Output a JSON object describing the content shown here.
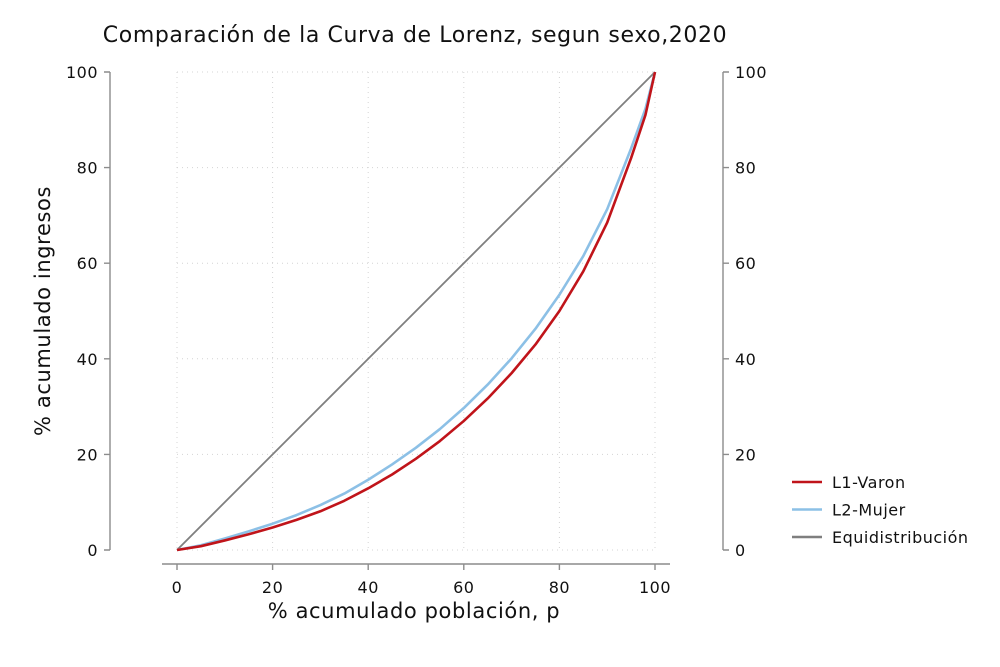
{
  "chart_data": {
    "type": "line",
    "title": "Comparación de la Curva de Lorenz, segun sexo,2020",
    "xlabel": "% acumulado población, p",
    "ylabel": "% acumulado ingresos",
    "xlim": [
      0,
      100
    ],
    "ylim": [
      0,
      100
    ],
    "x_ticks": [
      "0",
      "20",
      "40",
      "60",
      "80",
      "100"
    ],
    "y_ticks": [
      "0",
      "20",
      "40",
      "60",
      "80",
      "100"
    ],
    "y_ticks_right": [
      "0",
      "20",
      "40",
      "60",
      "80",
      "100"
    ],
    "grid": true,
    "legend_position": "right",
    "series": [
      {
        "name": "L1-Varon",
        "color": "#c0141a",
        "x": [
          0,
          5,
          10,
          15,
          20,
          25,
          30,
          35,
          40,
          45,
          50,
          55,
          60,
          65,
          70,
          75,
          80,
          85,
          90,
          95,
          98,
          100
        ],
        "y": [
          0,
          0.8,
          2.0,
          3.3,
          4.7,
          6.3,
          8.1,
          10.3,
          12.9,
          15.8,
          19.1,
          22.8,
          27.0,
          31.7,
          37.0,
          43.0,
          50.0,
          58.3,
          68.5,
          82.0,
          91.0,
          100
        ]
      },
      {
        "name": "L2-Mujer",
        "color": "#8cc0e6",
        "x": [
          0,
          5,
          10,
          15,
          20,
          25,
          30,
          35,
          40,
          45,
          50,
          55,
          60,
          65,
          70,
          75,
          80,
          85,
          90,
          95,
          98,
          100
        ],
        "y": [
          0,
          1.0,
          2.4,
          3.9,
          5.5,
          7.3,
          9.4,
          11.8,
          14.7,
          17.9,
          21.4,
          25.3,
          29.7,
          34.6,
          40.1,
          46.3,
          53.4,
          61.5,
          71.3,
          84.0,
          92.3,
          100
        ]
      },
      {
        "name": "Equidistribución",
        "color": "#7f7f7f",
        "x": [
          0,
          100
        ],
        "y": [
          0,
          100
        ]
      }
    ]
  }
}
